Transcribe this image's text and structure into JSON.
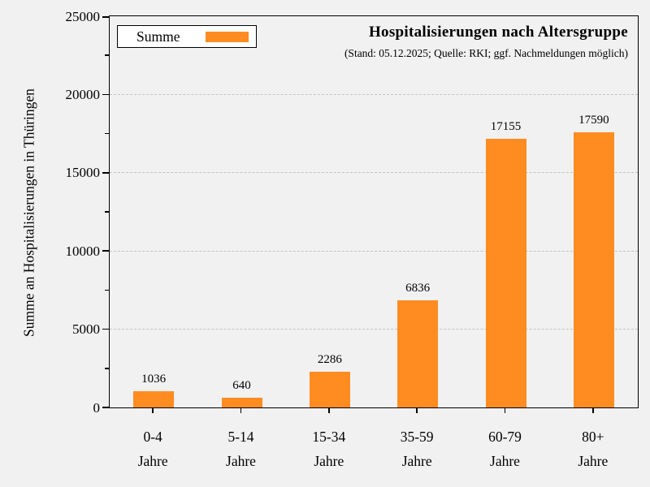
{
  "figure": {
    "background": "#F1F1F1",
    "axis_color": "#000000",
    "grid_color": "#C4C4C4",
    "text_color": "#000000",
    "legend_background": "#FFFFFF"
  },
  "chart_data": {
    "type": "bar",
    "title": "Hospitalisierungen nach Altersgruppe",
    "subtitle": "(Stand: 05.12.2025; Quelle: RKI; ggf. Nachmeldungen möglich)",
    "ylabel": "Summe an Hospitalisierungen in Thüringen",
    "xlabel": "",
    "legend_label": "Summe",
    "legend_position": "top-left",
    "categories": [
      "0-4",
      "5-14",
      "15-34",
      "35-59",
      "60-79",
      "80+"
    ],
    "category_suffix": "Jahre",
    "values": [
      1036,
      640,
      2286,
      6836,
      17155,
      17590
    ],
    "ylim": [
      0,
      25000
    ],
    "ytick_step": 5000,
    "minor_tick_step": 2500,
    "grid": "horizontal-dashed-at-major-ticks",
    "bar_color": "#FF8C21"
  }
}
